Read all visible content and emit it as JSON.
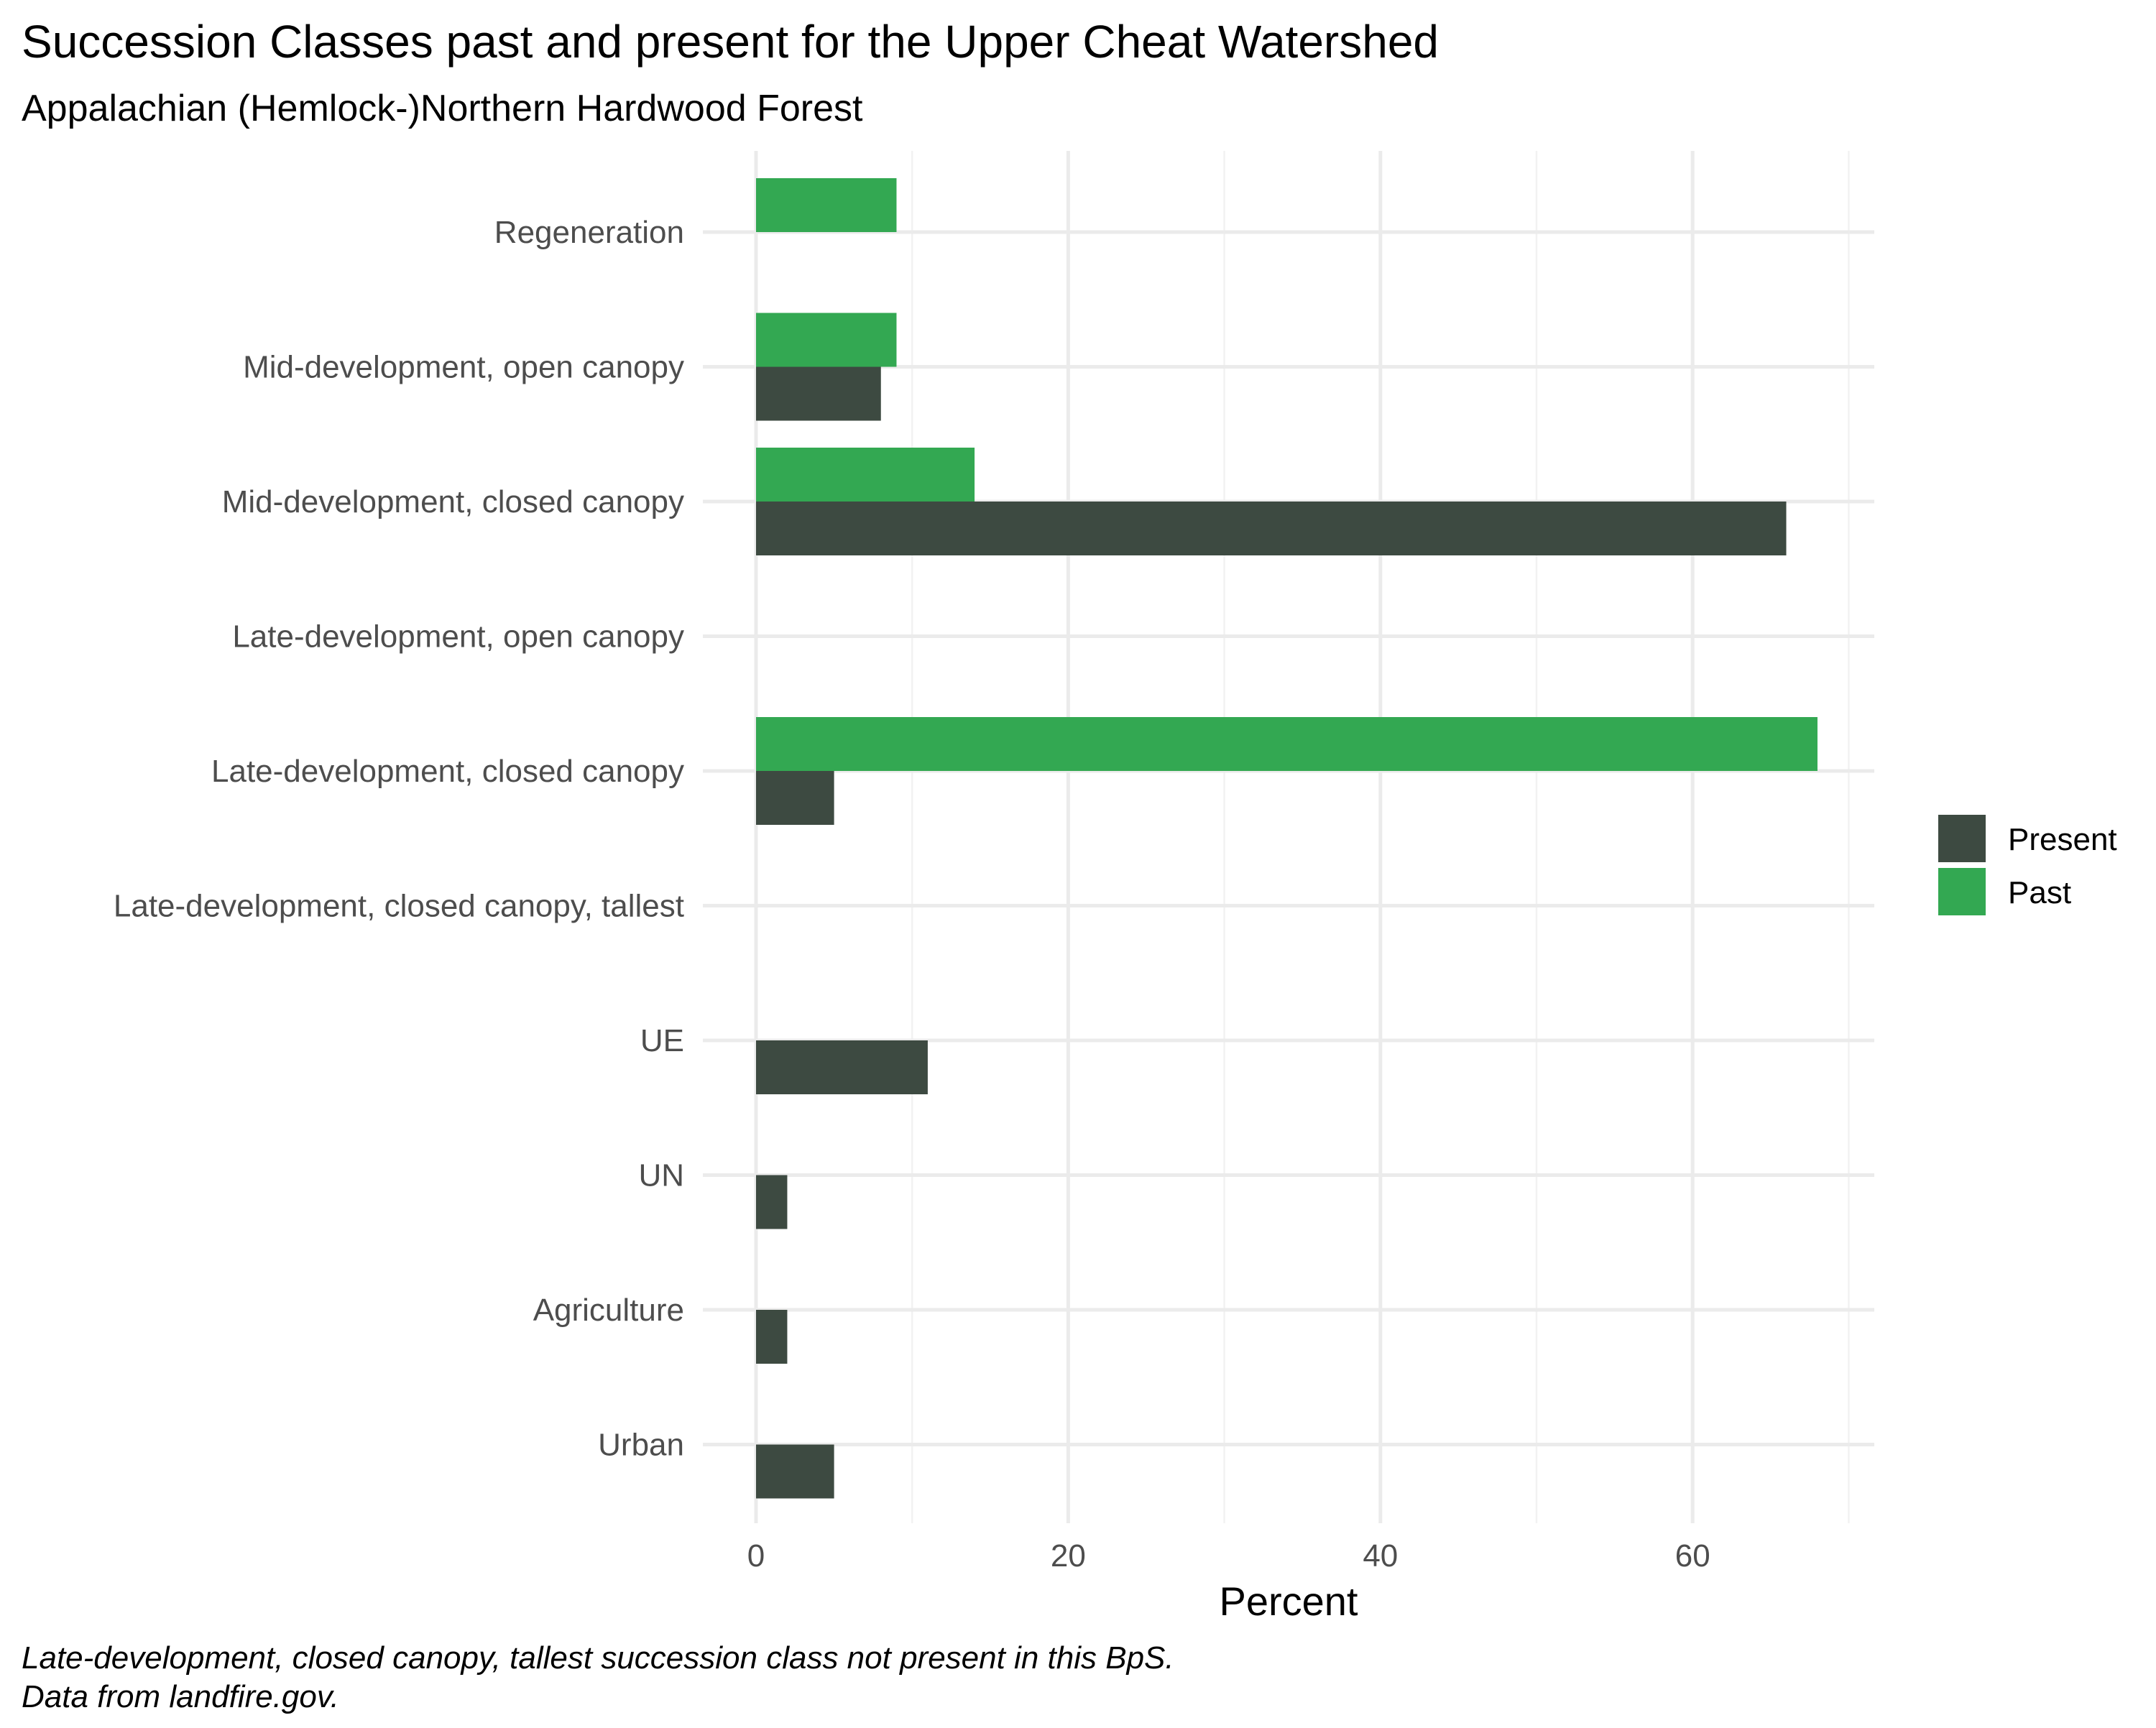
{
  "chart_data": {
    "type": "bar",
    "orientation": "horizontal",
    "title": "Succession Classes past and present for the Upper Cheat Watershed",
    "subtitle": "Appalachian (Hemlock-)Northern Hardwood Forest",
    "xlabel": "Percent",
    "ylabel": "",
    "xlim": [
      0,
      71
    ],
    "xticks": [
      0,
      20,
      40,
      60
    ],
    "grid": true,
    "legend_position": "right",
    "categories": [
      "Regeneration",
      "Mid-development, open canopy",
      "Mid-development, closed canopy",
      "Late-development, open canopy",
      "Late-development, closed canopy",
      "Late-development, closed canopy, tallest",
      "UE",
      "UN",
      "Agriculture",
      "Urban"
    ],
    "series": [
      {
        "name": "Present",
        "color": "#3d4a41",
        "values": [
          null,
          8,
          66,
          null,
          5,
          null,
          11,
          2,
          2,
          5
        ]
      },
      {
        "name": "Past",
        "color": "#33a852",
        "values": [
          9,
          9,
          14,
          null,
          68,
          null,
          null,
          null,
          null,
          null
        ]
      }
    ],
    "caption_lines": [
      "Late-development, closed canopy, tallest succession class not present in this BpS.",
      "Data from landfire.gov."
    ]
  }
}
